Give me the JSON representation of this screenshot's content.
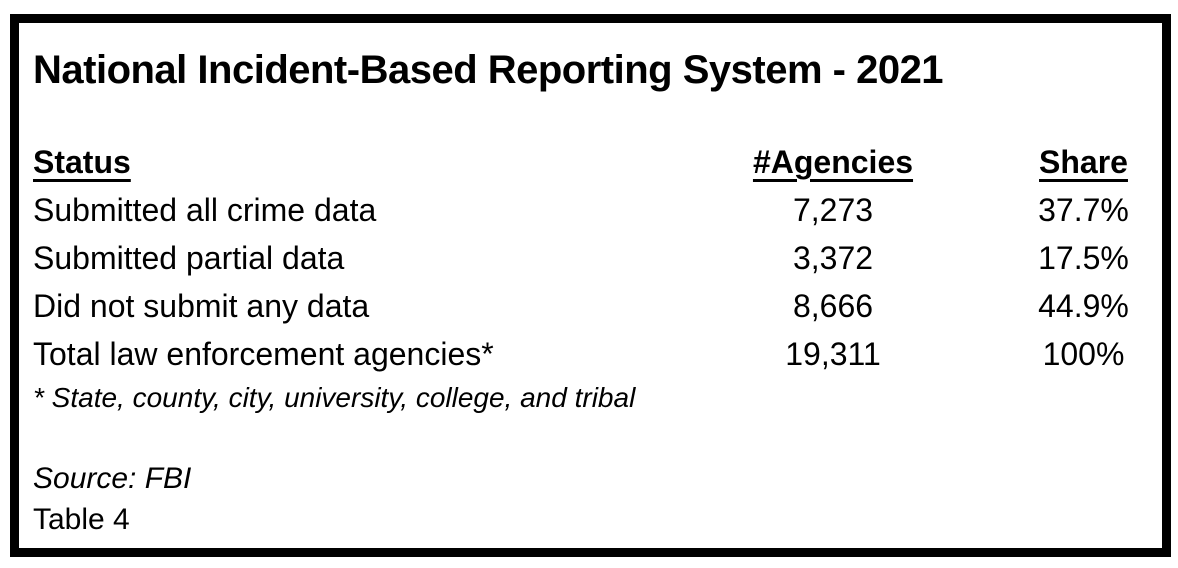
{
  "title": "National Incident-Based Reporting System - 2021",
  "table": {
    "headers": {
      "status": "Status",
      "agencies": "#Agencies",
      "share": "Share"
    },
    "rows": [
      {
        "status": "Submitted all crime data",
        "agencies": "7,273",
        "share": "37.7%"
      },
      {
        "status": "Submitted partial data",
        "agencies": "3,372",
        "share": "17.5%"
      },
      {
        "status": "Did not submit any data",
        "agencies": "8,666",
        "share": "44.9%"
      },
      {
        "status": "Total law enforcement agencies*",
        "agencies": "19,311",
        "share": "100%"
      }
    ],
    "footnote": "* State, county, city, university, college, and tribal"
  },
  "source": "Source: FBI",
  "table_label": "Table 4",
  "colors": {
    "border": "#000000",
    "text": "#000000",
    "background": "#ffffff"
  },
  "chart_data": {
    "type": "table",
    "title": "National Incident-Based Reporting System - 2021",
    "columns": [
      "Status",
      "#Agencies",
      "Share"
    ],
    "rows": [
      [
        "Submitted all crime data",
        7273,
        "37.7%"
      ],
      [
        "Submitted partial data",
        3372,
        "17.5%"
      ],
      [
        "Did not submit any data",
        8666,
        "44.9%"
      ],
      [
        "Total law enforcement agencies*",
        19311,
        "100%"
      ]
    ],
    "footnote": "* State, county, city, university, college, and tribal",
    "source": "Source: FBI",
    "label": "Table 4"
  }
}
